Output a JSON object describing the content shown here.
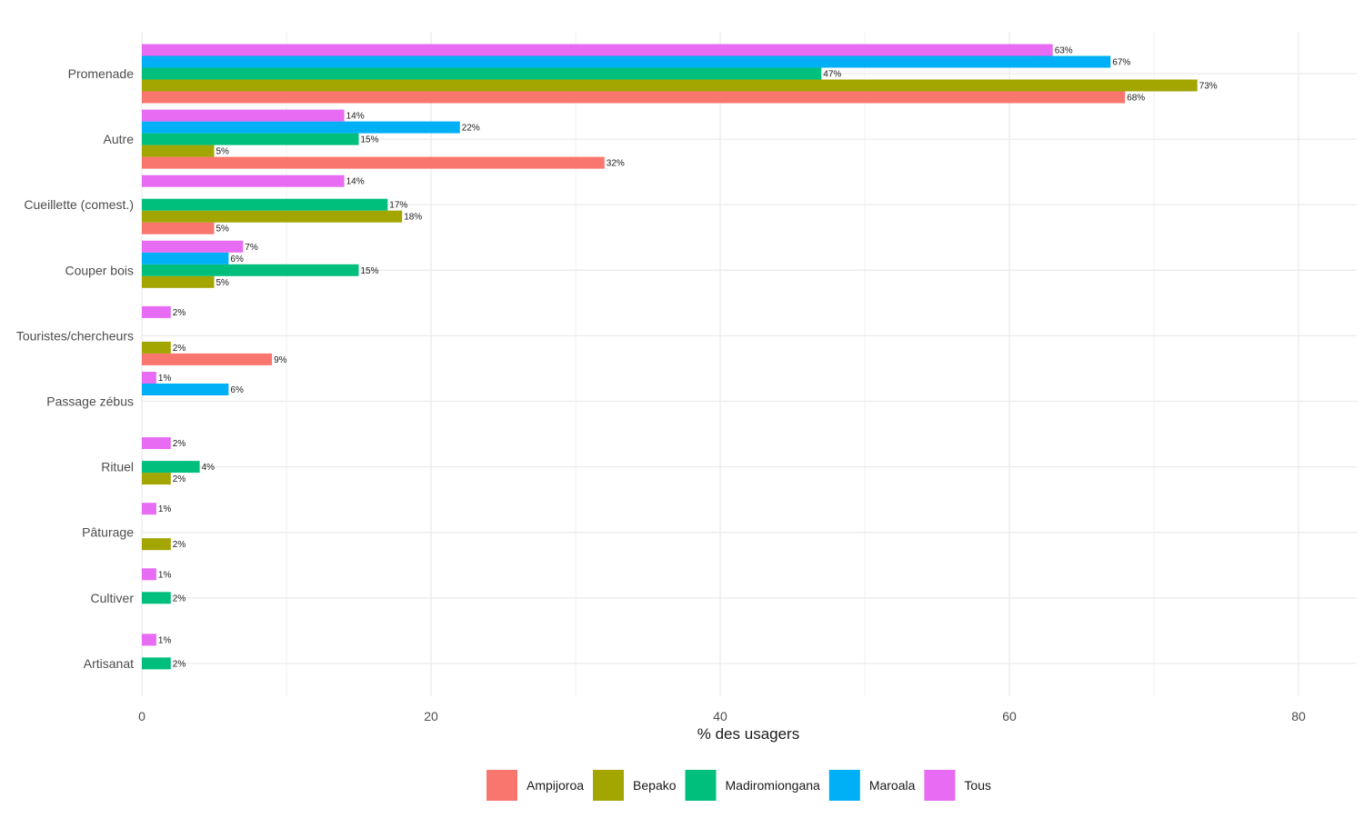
{
  "chart_data": {
    "type": "bar",
    "orientation": "horizontal",
    "xlabel": "% des usagers",
    "ylabel": "",
    "xlim": [
      0,
      84
    ],
    "x_ticks": [
      0,
      20,
      40,
      60,
      80
    ],
    "grid": true,
    "legend_position": "bottom",
    "value_suffix": "%",
    "categories": [
      "Promenade",
      "Autre",
      "Cueillette (comest.)",
      "Couper bois",
      "Touristes/chercheurs",
      "Passage zébus",
      "Rituel",
      "Pâturage",
      "Cultiver",
      "Artisanat"
    ],
    "series": [
      {
        "name": "Ampijoroa",
        "color": "#F8766D",
        "values": [
          68,
          32,
          5,
          null,
          9,
          null,
          null,
          null,
          null,
          null
        ]
      },
      {
        "name": "Bepako",
        "color": "#A3A500",
        "values": [
          73,
          5,
          18,
          5,
          2,
          null,
          2,
          2,
          null,
          null
        ]
      },
      {
        "name": "Madiromiongana",
        "color": "#00BF7D",
        "values": [
          47,
          15,
          17,
          15,
          null,
          null,
          4,
          null,
          2,
          2
        ]
      },
      {
        "name": "Maroala",
        "color": "#00B0F6",
        "values": [
          67,
          22,
          null,
          6,
          null,
          6,
          null,
          null,
          null,
          null
        ]
      },
      {
        "name": "Tous",
        "color": "#E76BF3",
        "values": [
          63,
          14,
          14,
          7,
          2,
          1,
          2,
          1,
          1,
          1
        ]
      }
    ]
  }
}
